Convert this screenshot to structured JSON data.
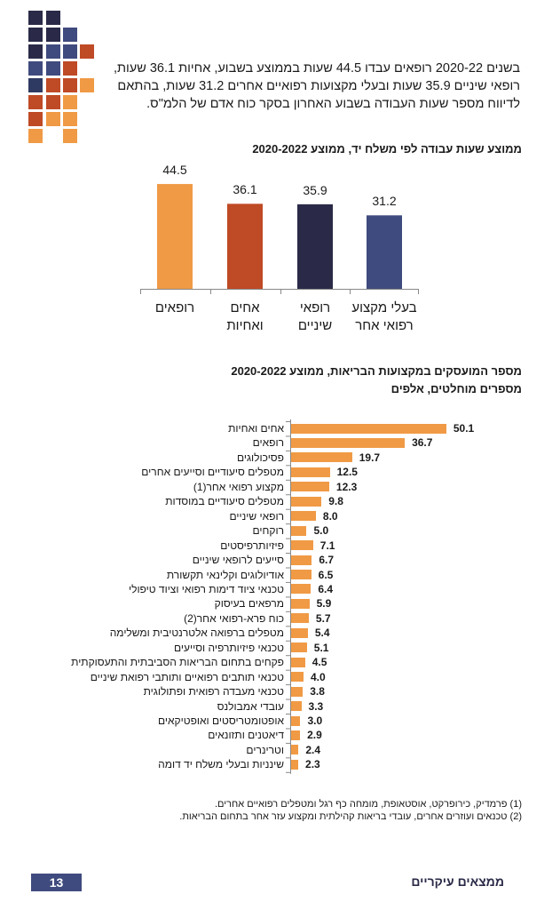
{
  "intro_text": "בשנים 2020-22 רופאים עבדו 44.5 שעות בממוצע בשבוע, אחיות 36.1 שעות, רופאי שיניים 35.9 שעות ובעלי מקצועות רפואיים אחרים 31.2 שעות, בהתאם לדיווח מספר שעות העבודה בשבוע האחרון בסקר כוח אדם של הלמ\"ס.",
  "colors": {
    "dark": "#2a2a48",
    "blue": "#3f4b7e",
    "red": "#bf4a26",
    "orange": "#f09a45"
  },
  "chart_data": [
    {
      "type": "bar",
      "title": "ממוצע שעות עבודה לפי משלח יד, ממוצע 2020-2022",
      "categories": [
        "רופאים",
        "אחים ואחיות",
        "רופאי שיניים",
        "בעלי מקצוע רפואי אחר"
      ],
      "category_lines": [
        [
          "רופאים"
        ],
        [
          "אחים",
          "ואחיות"
        ],
        [
          "רופאי",
          "שיניים"
        ],
        [
          "בעלי מקצוע",
          "רפואי אחר"
        ]
      ],
      "values": [
        44.5,
        36.1,
        35.9,
        31.2
      ],
      "value_labels": [
        "44.5",
        "36.1",
        "35.9",
        "31.2"
      ],
      "bar_colors": [
        "#f09a45",
        "#bf4a26",
        "#2a2a48",
        "#3f4b7e"
      ],
      "ylim": [
        0,
        50
      ]
    },
    {
      "type": "bar",
      "orientation": "horizontal",
      "title": "מספר המועסקים במקצועות הבריאות, ממוצע 2020-2022",
      "subtitle": "מספרים מוחלטים, אלפים",
      "categories": [
        "אחים ואחיות",
        "רופאים",
        "פסיכולוגים",
        "מטפלים סיעודיים וסייעים אחרים",
        "מקצוע רפואי אחר(1)",
        "מטפלים סיעודיים במוסדות",
        "רופאי שיניים",
        "רוקחים",
        "פיזיותרפיסטים",
        "סייעים לרופאי שיניים",
        "אודיולוגים וקלינאי תקשורת",
        "טכנאי ציוד דימות רפואי וציוד טיפולי",
        "מרפאים בעיסוק",
        "כוח פרא-רפואי אחר(2)",
        "מטפלים ברפואה אלטרנטיבית ומשלימה",
        "טכנאי פיזיותרפיה וסייעים",
        "פקחים בתחום הבריאות הסביבתית והתעסוקתית",
        "טכנאי תותבים רפואיים ותותבי רפואת שיניים",
        "טכנאי מעבדה רפואית ופתולוגית",
        "עובדי אמבולנס",
        "אופטומטריסטים ואופטיקאים",
        "דיאטנים ותזונאים",
        "וטרינרים",
        "שינניות ובעלי משלח יד דומה"
      ],
      "values": [
        50.1,
        36.7,
        19.7,
        12.5,
        12.3,
        9.8,
        8.0,
        5.0,
        7.1,
        6.7,
        6.5,
        6.4,
        5.9,
        5.7,
        5.4,
        5.1,
        4.5,
        4.0,
        3.8,
        3.3,
        3.0,
        2.9,
        2.4,
        2.3
      ],
      "value_labels": [
        "50.1",
        "36.7",
        "19.7",
        "12.5",
        "12.3",
        "9.8",
        "8.0",
        "5.0",
        "7.1",
        "6.7",
        "6.5",
        "6.4",
        "5.9",
        "5.7",
        "5.4",
        "5.1",
        "4.5",
        "4.0",
        "3.8",
        "3.3",
        "3.0",
        "2.9",
        "2.4",
        "2.3"
      ],
      "xlim": [
        0,
        55
      ]
    }
  ],
  "footnotes": [
    "(1) פרמדיק, כירופרקט, אוסטאופת, מומחה כף רגל ומטפלים רפואיים אחרים.",
    "(2) טכנאים ועוזרים אחרים, עובדי בריאות קהילתית ומקצוע עזר אחר בתחום הבריאות."
  ],
  "footer": {
    "page_number": "13",
    "section": "ממצאים עיקריים"
  }
}
